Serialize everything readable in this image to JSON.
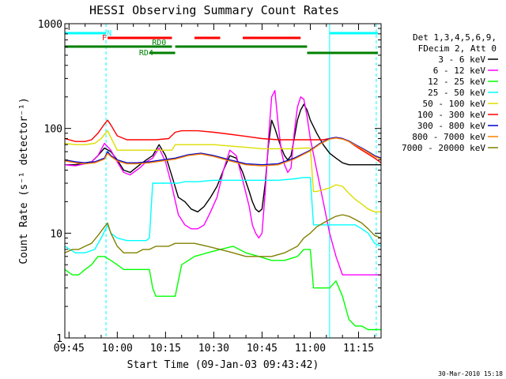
{
  "chart_data": {
    "type": "line",
    "title": "HESSI Observing Summary Count Rates",
    "xlabel": "Start Time (09-Jan-03 09:43:42)",
    "ylabel": "Count Rate (s⁻¹ detector⁻¹)",
    "yscale": "log",
    "ylim": [
      1,
      1000
    ],
    "xlim_minutes": [
      583.7,
      682.0
    ],
    "xticks": [
      {
        "label": "09:45",
        "t": 585
      },
      {
        "label": "10:00",
        "t": 600
      },
      {
        "label": "10:15",
        "t": 615
      },
      {
        "label": "10:30",
        "t": 630
      },
      {
        "label": "10:45",
        "t": 645
      },
      {
        "label": "11:00",
        "t": 660
      },
      {
        "label": "11:15",
        "t": 675
      }
    ],
    "yticks": [
      {
        "label": "1",
        "v": 1
      },
      {
        "label": "10",
        "v": 10
      },
      {
        "label": "100",
        "v": 100
      },
      {
        "label": "1000",
        "v": 1000
      }
    ],
    "legend_header": [
      "Det 1,3,4,5,6,9,",
      "FDecim 2, Att 0"
    ],
    "legend_position": "right",
    "series": [
      {
        "name": "3 - 6 keV",
        "color": "#000000",
        "t": [
          583.7,
          587,
          590,
          592,
          594,
          596,
          598,
          600,
          602,
          604,
          607,
          609,
          611,
          613,
          615,
          617,
          619,
          621,
          623,
          625,
          627,
          629,
          631,
          633,
          635,
          637,
          639,
          641,
          642,
          643,
          644,
          645,
          646,
          647,
          648,
          649,
          650,
          651,
          652,
          653,
          654,
          655,
          656,
          657,
          658,
          659,
          660,
          662,
          664,
          666,
          668,
          670,
          672,
          674,
          676,
          678,
          680,
          682
        ],
        "v": [
          45,
          45,
          47,
          48,
          55,
          65,
          60,
          50,
          40,
          38,
          45,
          50,
          55,
          70,
          55,
          35,
          22,
          20,
          17,
          16,
          18,
          22,
          28,
          40,
          55,
          52,
          38,
          25,
          20,
          17,
          16,
          17,
          30,
          70,
          120,
          100,
          80,
          65,
          55,
          50,
          55,
          80,
          120,
          150,
          170,
          150,
          120,
          90,
          70,
          58,
          52,
          47,
          45,
          45,
          45,
          45,
          45,
          45
        ]
      },
      {
        "name": "6 - 12 keV",
        "color": "#ff00ff",
        "t": [
          583.7,
          587,
          590,
          592,
          594,
          596,
          598,
          600,
          602,
          604,
          607,
          609,
          611,
          613,
          615,
          617,
          619,
          621,
          623,
          625,
          627,
          629,
          631,
          633,
          635,
          637,
          639,
          641,
          642,
          643,
          644,
          645,
          646,
          647,
          648,
          649,
          650,
          651,
          652,
          653,
          654,
          655,
          656,
          657,
          658,
          659,
          660,
          662,
          664,
          666,
          668,
          670,
          672,
          674,
          676,
          678,
          680,
          682
        ],
        "v": [
          45,
          44,
          46,
          48,
          55,
          72,
          62,
          48,
          38,
          36,
          42,
          48,
          52,
          65,
          48,
          28,
          15,
          12,
          11,
          11,
          12,
          16,
          22,
          40,
          62,
          55,
          32,
          18,
          12,
          10,
          9,
          10,
          25,
          80,
          200,
          230,
          110,
          60,
          45,
          38,
          42,
          90,
          160,
          200,
          190,
          130,
          80,
          40,
          20,
          10,
          6,
          4,
          4,
          4,
          4,
          4,
          4,
          4
        ]
      },
      {
        "name": "12 - 25 keV",
        "color": "#00ff00",
        "t": [
          583.7,
          586,
          588,
          590,
          592,
          594,
          596,
          598,
          600,
          602,
          604,
          606,
          608,
          610,
          611,
          612,
          614,
          616,
          618,
          620,
          624,
          628,
          632,
          636,
          640,
          644,
          648,
          652,
          656,
          658,
          660,
          661,
          662,
          664,
          666,
          668,
          670,
          672,
          674,
          676,
          678,
          680,
          682
        ],
        "v": [
          4.5,
          4.0,
          4.0,
          4.5,
          5.0,
          6.0,
          6.0,
          5.5,
          5.0,
          4.5,
          4.5,
          4.5,
          4.5,
          4.5,
          3.0,
          2.5,
          2.5,
          2.5,
          2.5,
          5.0,
          6.0,
          6.5,
          7.0,
          7.5,
          6.5,
          6.0,
          5.5,
          5.5,
          6.0,
          7.0,
          7.0,
          3.0,
          3.0,
          3.0,
          3.0,
          3.5,
          2.5,
          1.5,
          1.3,
          1.3,
          1.2,
          1.2,
          1.2
        ]
      },
      {
        "name": "25 - 50 keV",
        "color": "#00ffff",
        "t": [
          583.7,
          587,
          590,
          593,
          595,
          597,
          598,
          600,
          603,
          606,
          609,
          610,
          611,
          613,
          615,
          617,
          619,
          621,
          625,
          630,
          635,
          640,
          645,
          650,
          655,
          658,
          660,
          661,
          662,
          664,
          666,
          668,
          670,
          672,
          674,
          676,
          678,
          680,
          682
        ],
        "v": [
          7.5,
          6.5,
          6.5,
          7.0,
          9.0,
          12.0,
          10.0,
          9.0,
          8.5,
          8.5,
          8.5,
          9.0,
          30,
          30,
          30,
          30,
          30,
          31,
          31,
          32,
          32,
          32,
          32,
          32,
          33,
          34,
          34,
          12,
          12,
          12,
          12,
          12,
          12,
          12,
          12,
          11,
          10,
          8,
          7.5
        ]
      },
      {
        "name": "50 - 100 keV",
        "color": "#dddd00",
        "t": [
          583.7,
          587,
          590,
          593,
          595,
          597,
          598,
          600,
          604,
          608,
          610,
          611,
          614,
          617,
          618,
          620,
          625,
          630,
          635,
          640,
          645,
          650,
          655,
          658,
          660,
          661,
          662,
          664,
          666,
          668,
          670,
          672,
          674,
          676,
          678,
          680,
          682
        ],
        "v": [
          72,
          70,
          70,
          72,
          80,
          95,
          82,
          62,
          62,
          62,
          62,
          62,
          62,
          62,
          70,
          70,
          70,
          70,
          68,
          66,
          64,
          64,
          64,
          65,
          65,
          25,
          25,
          26,
          27,
          29,
          28,
          24,
          21,
          19,
          17,
          16,
          16
        ]
      },
      {
        "name": "100 - 300 keV",
        "color": "#ff0000",
        "t": [
          583.7,
          587,
          590,
          592,
          594,
          596,
          597,
          598,
          600,
          603,
          606,
          610,
          612,
          616,
          618,
          620,
          625,
          630,
          635,
          640,
          645,
          650,
          655,
          660,
          662,
          664,
          666,
          668,
          670,
          672,
          674,
          676,
          678,
          680,
          682
        ],
        "v": [
          80,
          75,
          75,
          78,
          90,
          110,
          120,
          108,
          85,
          78,
          78,
          78,
          78,
          80,
          92,
          95,
          95,
          92,
          88,
          84,
          80,
          78,
          78,
          78,
          78,
          78,
          80,
          82,
          80,
          75,
          68,
          62,
          57,
          52,
          47
        ]
      },
      {
        "name": "300 - 800 keV",
        "color": "#0000cc",
        "t": [
          583.7,
          587,
          590,
          593,
          596,
          597,
          598,
          600,
          603,
          606,
          610,
          614,
          618,
          622,
          626,
          630,
          635,
          640,
          645,
          650,
          655,
          660,
          663,
          666,
          668,
          670,
          672,
          674,
          676,
          678,
          680,
          682
        ],
        "v": [
          50,
          48,
          47,
          48,
          52,
          60,
          55,
          50,
          47,
          47,
          48,
          50,
          52,
          56,
          58,
          55,
          50,
          46,
          45,
          46,
          52,
          62,
          72,
          80,
          82,
          80,
          76,
          70,
          65,
          60,
          55,
          52
        ]
      },
      {
        "name": "800 - 7000 keV",
        "color": "#ff8000",
        "t": [
          583.7,
          587,
          590,
          593,
          596,
          597,
          598,
          600,
          603,
          606,
          610,
          614,
          618,
          622,
          626,
          630,
          635,
          640,
          645,
          650,
          655,
          660,
          663,
          666,
          668,
          670,
          672,
          674,
          676,
          678,
          680,
          682
        ],
        "v": [
          49,
          47,
          46,
          47,
          51,
          58,
          54,
          49,
          46,
          46,
          47,
          49,
          51,
          55,
          57,
          54,
          49,
          45,
          44,
          45,
          51,
          61,
          71,
          79,
          81,
          79,
          75,
          69,
          64,
          59,
          54,
          51
        ]
      },
      {
        "name": "7000 - 20000 keV",
        "color": "#808000",
        "t": [
          583.7,
          586,
          588,
          590,
          592,
          594,
          596,
          597,
          598,
          600,
          602,
          604,
          606,
          608,
          610,
          612,
          614,
          616,
          618,
          620,
          624,
          628,
          632,
          636,
          640,
          644,
          648,
          652,
          656,
          658,
          660,
          662,
          664,
          666,
          668,
          670,
          672,
          674,
          676,
          678,
          680,
          682
        ],
        "v": [
          6.5,
          7.0,
          7.0,
          7.5,
          8.0,
          9.5,
          11.5,
          12.5,
          10.0,
          7.5,
          6.5,
          6.5,
          6.5,
          7.0,
          7.0,
          7.5,
          7.5,
          7.5,
          8.0,
          8.0,
          8.0,
          7.5,
          7.0,
          6.5,
          6.0,
          6.0,
          6.0,
          6.5,
          7.5,
          9.0,
          10.0,
          11.5,
          12.5,
          13.5,
          14.5,
          15.0,
          14.5,
          13.5,
          12.5,
          11.0,
          9.5,
          9.0
        ]
      }
    ],
    "state_bars": [
      {
        "name": "N",
        "color": "#00ffff",
        "label_t": 597.5,
        "segments": [
          [
            583.7,
            596.5
          ],
          [
            666.0,
            681.0
          ]
        ]
      },
      {
        "name": "F",
        "color": "#ff0000",
        "label_t": 596.0,
        "segments": [
          [
            597.0,
            617.0
          ],
          [
            624.0,
            632.0
          ],
          [
            639.0,
            657.0
          ]
        ]
      },
      {
        "name": "RD0",
        "color": "#008000",
        "label_t": 613.0,
        "segments": [
          [
            583.7,
            617.0
          ],
          [
            618.0,
            659.0
          ]
        ]
      },
      {
        "name": "RD4",
        "color": "#008000",
        "label_t": 609.0,
        "segments": [
          [
            610.0,
            618.0
          ],
          [
            659.0,
            681.0
          ]
        ]
      }
    ],
    "vlines": [
      {
        "t": 596.5,
        "color": "#00ffff",
        "style": "dashed"
      },
      {
        "t": 666.0,
        "color": "#00ffff",
        "style": "solid"
      },
      {
        "t": 680.5,
        "color": "#00ffff",
        "style": "dashed"
      }
    ],
    "footer": "30-Mar-2010 15:18"
  }
}
